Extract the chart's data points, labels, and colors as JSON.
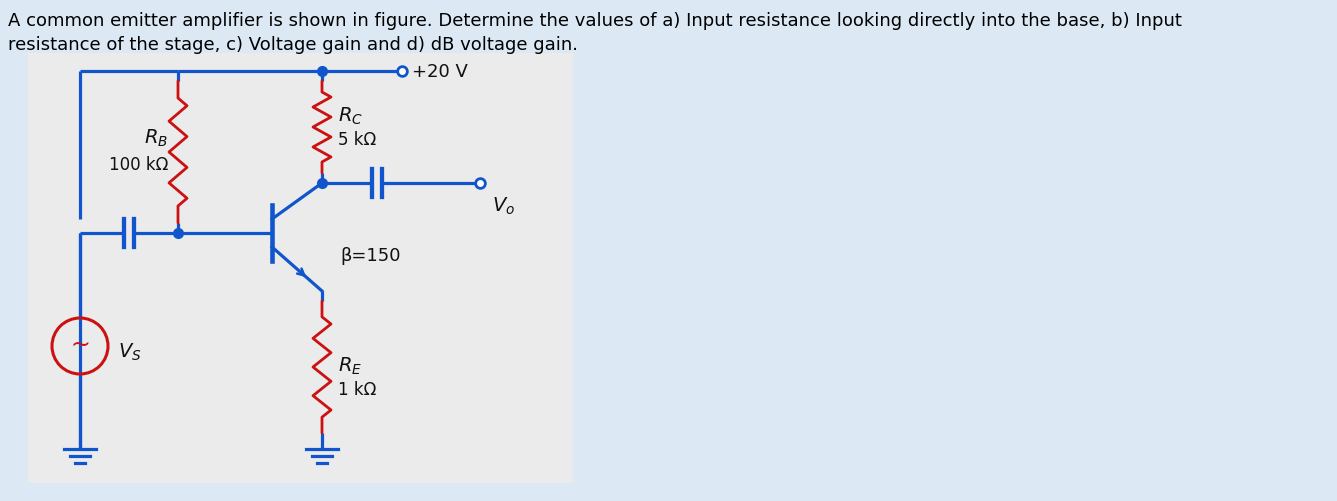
{
  "background_color": "#dce9f5",
  "text_title_line1": "A common emitter amplifier is shown in figure. Determine the values of a) Input resistance looking directly into the base, b) Input",
  "text_title_line2": "resistance of the stage, c) Voltage gain and d) dB voltage gain.",
  "title_fontsize": 13,
  "title_color": "#000000",
  "circuit_bg": "#e8e8e8",
  "wire_color": "#1155cc",
  "resistor_color": "#cc1111",
  "text_color": "#111111",
  "vcc_label": "+20 V",
  "rb_label1": "R_B",
  "rb_label2": "100 kΩ",
  "rc_label1": "R_C",
  "rc_label2": "5 kΩ",
  "re_label1": "R_E",
  "re_label2": "1 kΩ",
  "beta_label": "β=150",
  "vo_label": "V_o",
  "vs_label": "V_S"
}
